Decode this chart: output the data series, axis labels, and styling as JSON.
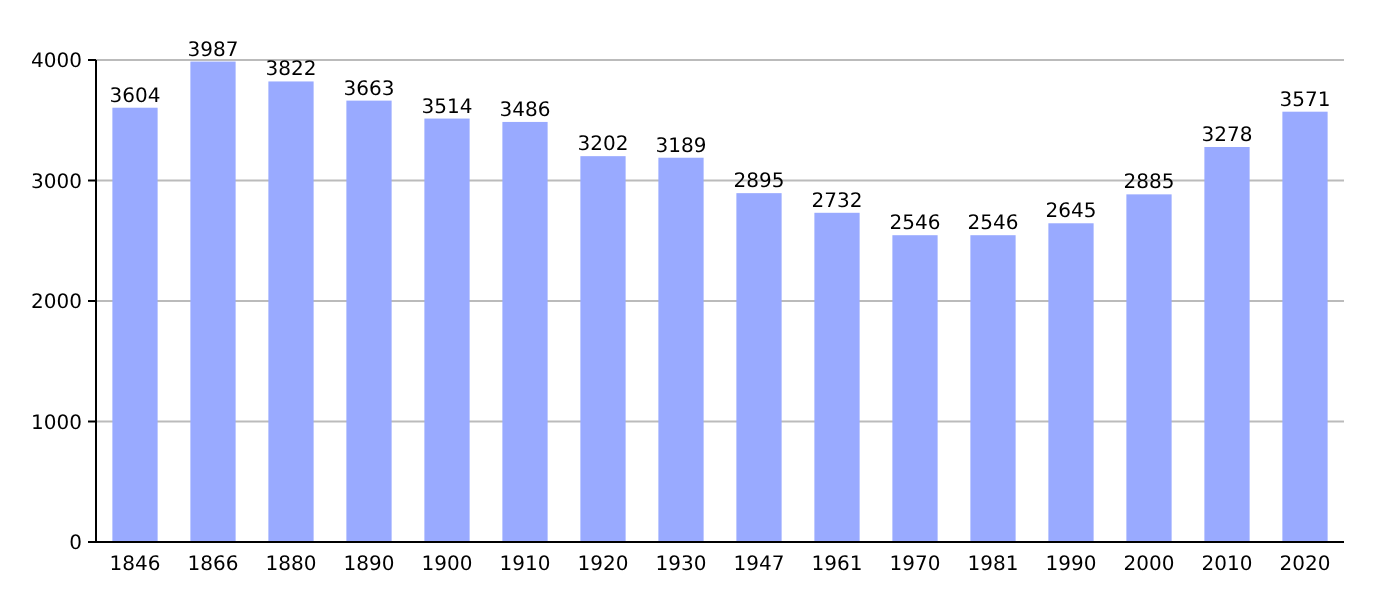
{
  "chart_data": {
    "type": "bar",
    "categories": [
      "1846",
      "1866",
      "1880",
      "1890",
      "1900",
      "1910",
      "1920",
      "1930",
      "1947",
      "1961",
      "1970",
      "1981",
      "1990",
      "2000",
      "2010",
      "2020"
    ],
    "values": [
      3604,
      3987,
      3822,
      3663,
      3514,
      3486,
      3202,
      3189,
      2895,
      2732,
      2546,
      2546,
      2645,
      2885,
      3278,
      3571
    ],
    "color": "#99aaff",
    "ylim": [
      0,
      4000
    ],
    "yticks": [
      0,
      1000,
      2000,
      3000,
      4000
    ],
    "grid": "y",
    "data_labels": true
  }
}
